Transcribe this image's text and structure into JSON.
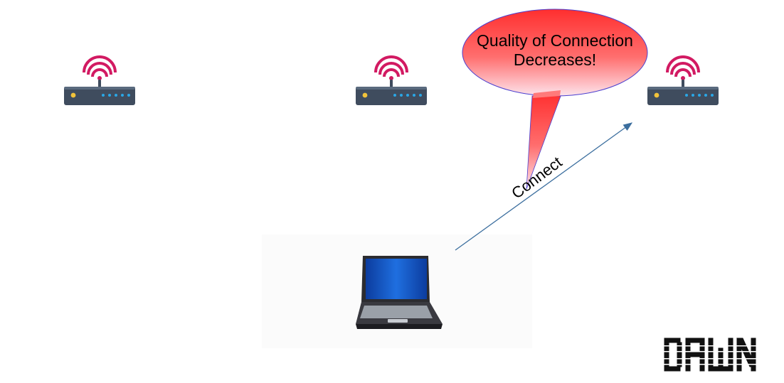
{
  "diagram": {
    "callout": {
      "line1": "Quality of Connection",
      "line2": "Decreases!",
      "fill_top": "#ff2f2f",
      "fill_bottom": "#fde2ea",
      "stroke": "#4b3fcf"
    },
    "connection": {
      "label": "Connect",
      "color": "#3b6e9e"
    },
    "routers": [
      {
        "name": "router-left"
      },
      {
        "name": "router-middle"
      },
      {
        "name": "router-right"
      }
    ],
    "router_style": {
      "body": "#3f4c5e",
      "signal": "#d21a62",
      "power_led": "#f2c33a",
      "status_led": "#2aa7e6"
    },
    "laptop": {
      "screen": "#1658c6"
    },
    "logo": {
      "text": "DAWN"
    }
  }
}
